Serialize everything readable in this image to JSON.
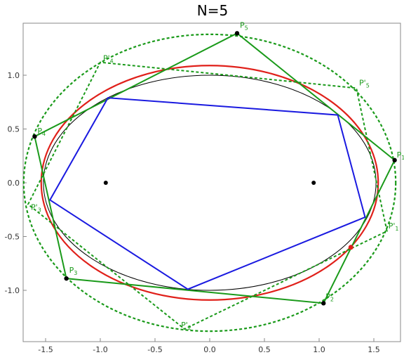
{
  "title": "N=5",
  "chart_data": {
    "type": "scatter",
    "title": "N=5",
    "xlim": [
      -1.72,
      1.74
    ],
    "ylim": [
      -1.48,
      1.44
    ],
    "x_ticks": [
      -1.5,
      -1.0,
      -0.5,
      0.0,
      0.5,
      1.0,
      1.5
    ],
    "y_ticks": [
      -1.0,
      -0.5,
      0.0,
      0.5,
      1.0
    ],
    "tick_labels_x": [
      "-1.5",
      "-1.0",
      "-0.5",
      "0.0",
      "0.5",
      "1.0",
      "1.5"
    ],
    "tick_labels_y": [
      "-1.0",
      "-0.5",
      "0.0",
      "0.5",
      "1.0"
    ],
    "colors": {
      "green": "#1a9a1a",
      "red": "#e0201a",
      "blue": "#1a1ae0",
      "black": "#000000"
    },
    "ellipses": [
      {
        "role": "black-ellipse",
        "center": [
          0,
          0
        ],
        "rx": 1.52,
        "ry": 1.0,
        "color": "#000000",
        "style": "solid"
      },
      {
        "role": "red-ellipse",
        "center": [
          0,
          0
        ],
        "rx": 1.54,
        "ry": 1.09,
        "color": "#e0201a",
        "style": "solid"
      },
      {
        "role": "green-dashed-ellipse",
        "center": [
          0,
          0
        ],
        "rx": 1.7,
        "ry": 1.38,
        "color": "#1a9a1a",
        "style": "dashed"
      }
    ],
    "foci": [
      [
        -0.95,
        0.0
      ],
      [
        0.95,
        0.0
      ]
    ],
    "blue_polygon": [
      [
        1.42,
        -0.32
      ],
      [
        1.17,
        0.63
      ],
      [
        -0.93,
        0.79
      ],
      [
        -1.46,
        -0.16
      ],
      [
        -0.2,
        -0.99
      ]
    ],
    "green_polygon": [
      [
        1.69,
        0.21
      ],
      [
        0.25,
        1.39
      ],
      [
        -1.6,
        0.43
      ],
      [
        -1.31,
        -0.89
      ],
      [
        1.04,
        -1.12
      ]
    ],
    "green_dashed_polygon": [
      [
        1.62,
        -0.45
      ],
      [
        1.34,
        0.88
      ],
      [
        -1.0,
        1.12
      ],
      [
        -1.66,
        -0.2
      ],
      [
        -0.23,
        -1.36
      ]
    ],
    "points": [
      {
        "name": "P",
        "sub": "1",
        "x": 1.69,
        "y": 0.21
      },
      {
        "name": "P",
        "sub": "2",
        "x": 1.04,
        "y": -1.12
      },
      {
        "name": "P",
        "sub": "3",
        "x": -1.31,
        "y": -0.89
      },
      {
        "name": "P",
        "sub": "4",
        "x": -1.6,
        "y": 0.43
      },
      {
        "name": "P",
        "sub": "5",
        "x": 0.25,
        "y": 1.39
      }
    ],
    "prime_labels": [
      {
        "name": "P'",
        "sub": "1",
        "x": 1.62,
        "y": -0.45
      },
      {
        "name": "P'",
        "sub": "2",
        "x": -0.23,
        "y": -1.36
      },
      {
        "name": "P'",
        "sub": "3",
        "x": -1.66,
        "y": -0.2
      },
      {
        "name": "P'",
        "sub": "4",
        "x": -1.0,
        "y": 1.12
      },
      {
        "name": "P'",
        "sub": "5",
        "x": 1.34,
        "y": 0.88
      }
    ],
    "red_point": [
      1.29,
      -0.6
    ]
  }
}
